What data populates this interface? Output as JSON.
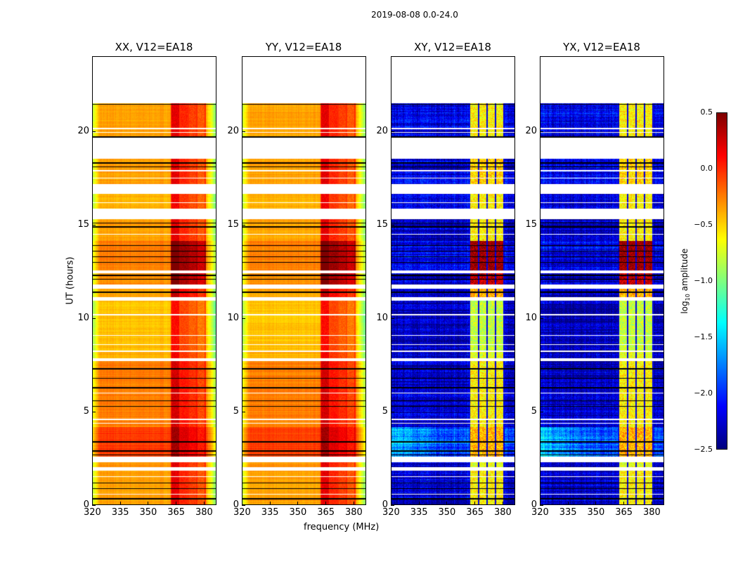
{
  "chart_data": {
    "type": "heatmap",
    "title": "2019-08-08 0.0-24.0",
    "xlabel": "frequency (MHz)",
    "ylabel": "UT (hours)",
    "xlim": [
      320,
      386.8
    ],
    "ylim": [
      0,
      24
    ],
    "xticks": [
      320,
      335,
      350,
      365,
      380
    ],
    "yticks": [
      0,
      5,
      10,
      15,
      20
    ],
    "colorbar": {
      "label_prefix": "log",
      "label_sub": "10",
      "label_suffix": " amplitude",
      "range": [
        -2.5,
        0.5
      ],
      "ticks": [
        "-2.5",
        "-2.0",
        "-1.5",
        "-1.0",
        "-0.5",
        "0.0",
        "0.5"
      ],
      "colormap": "jet"
    },
    "panels": [
      {
        "title": "XX, V12=EA18",
        "kind": "parallel"
      },
      {
        "title": "YY, V12=EA18",
        "kind": "parallel"
      },
      {
        "title": "XY, V12=EA18",
        "kind": "cross"
      },
      {
        "title": "YX, V12=EA18",
        "kind": "cross"
      }
    ],
    "rfi_bands_mhz": [
      [
        362.5,
        366.5
      ],
      [
        367.3,
        371.2
      ],
      [
        372,
        375.7
      ],
      [
        376.5,
        380.3
      ]
    ],
    "segments_hours": [
      {
        "t": [
          19.65,
          21.5
        ],
        "par_base": -0.35,
        "par_band": 0.1,
        "cross_base": -2.2,
        "cross_band": -0.6
      },
      {
        "t": [
          17.2,
          18.55
        ],
        "par_base": -0.35,
        "par_band": 0.1,
        "cross_base": -2.2,
        "cross_band": -0.5
      },
      {
        "t": [
          15.85,
          16.65
        ],
        "par_base": -0.4,
        "par_band": 0.05,
        "cross_base": -2.2,
        "cross_band": -0.6
      },
      {
        "t": [
          14.15,
          15.3
        ],
        "par_base": -0.35,
        "par_band": 0.1,
        "cross_base": -2.3,
        "cross_band": -0.6
      },
      {
        "t": [
          12.55,
          14.15
        ],
        "par_base": -0.25,
        "par_band": 0.5,
        "cross_base": -2.2,
        "cross_band": 0.45
      },
      {
        "t": [
          11.8,
          12.4
        ],
        "par_base": -0.3,
        "par_band": 0.45,
        "cross_base": -2.3,
        "cross_band": 0.3
      },
      {
        "t": [
          11.15,
          11.6
        ],
        "par_base": -0.35,
        "par_band": 0.2,
        "cross_base": -2.3,
        "cross_band": -0.4
      },
      {
        "t": [
          8.3,
          10.95
        ],
        "par_base": -0.45,
        "par_band": 0.0,
        "cross_base": -2.35,
        "cross_band": -0.8
      },
      {
        "t": [
          7.85,
          8.2
        ],
        "par_base": -0.4,
        "par_band": 0.05,
        "cross_base": -2.3,
        "cross_band": -0.7
      },
      {
        "t": [
          4.2,
          7.7
        ],
        "par_base": -0.25,
        "par_band": 0.15,
        "cross_base": -2.3,
        "cross_band": -0.6
      },
      {
        "t": [
          2.6,
          4.2
        ],
        "par_base": -0.05,
        "par_band": 0.3,
        "cross_base": -1.9,
        "cross_band": -0.4
      },
      {
        "t": [
          2.05,
          2.3
        ],
        "par_base": -0.3,
        "par_band": 0.1,
        "cross_base": -2.3,
        "cross_band": -0.7
      },
      {
        "t": [
          0,
          1.85
        ],
        "par_base": -0.35,
        "par_band": 0.1,
        "cross_base": -2.3,
        "cross_band": -0.6
      }
    ],
    "flag_lines_hours": [
      21.45,
      19.7,
      18.3,
      18.1,
      15.1,
      14.9,
      13.9,
      13.6,
      13.3,
      13.0,
      12.3,
      12.1,
      11.4,
      7.3,
      6.8,
      6.3,
      5.6,
      5.3,
      3.4,
      2.9,
      2.7,
      1.2,
      0.9,
      0.35
    ],
    "white_lines_hours": [
      20.15,
      19.95,
      17.9,
      17.5,
      16.2,
      14.5,
      10.2,
      9.1,
      8.6,
      6.0,
      4.6,
      4.4,
      1.55,
      0.6
    ]
  }
}
